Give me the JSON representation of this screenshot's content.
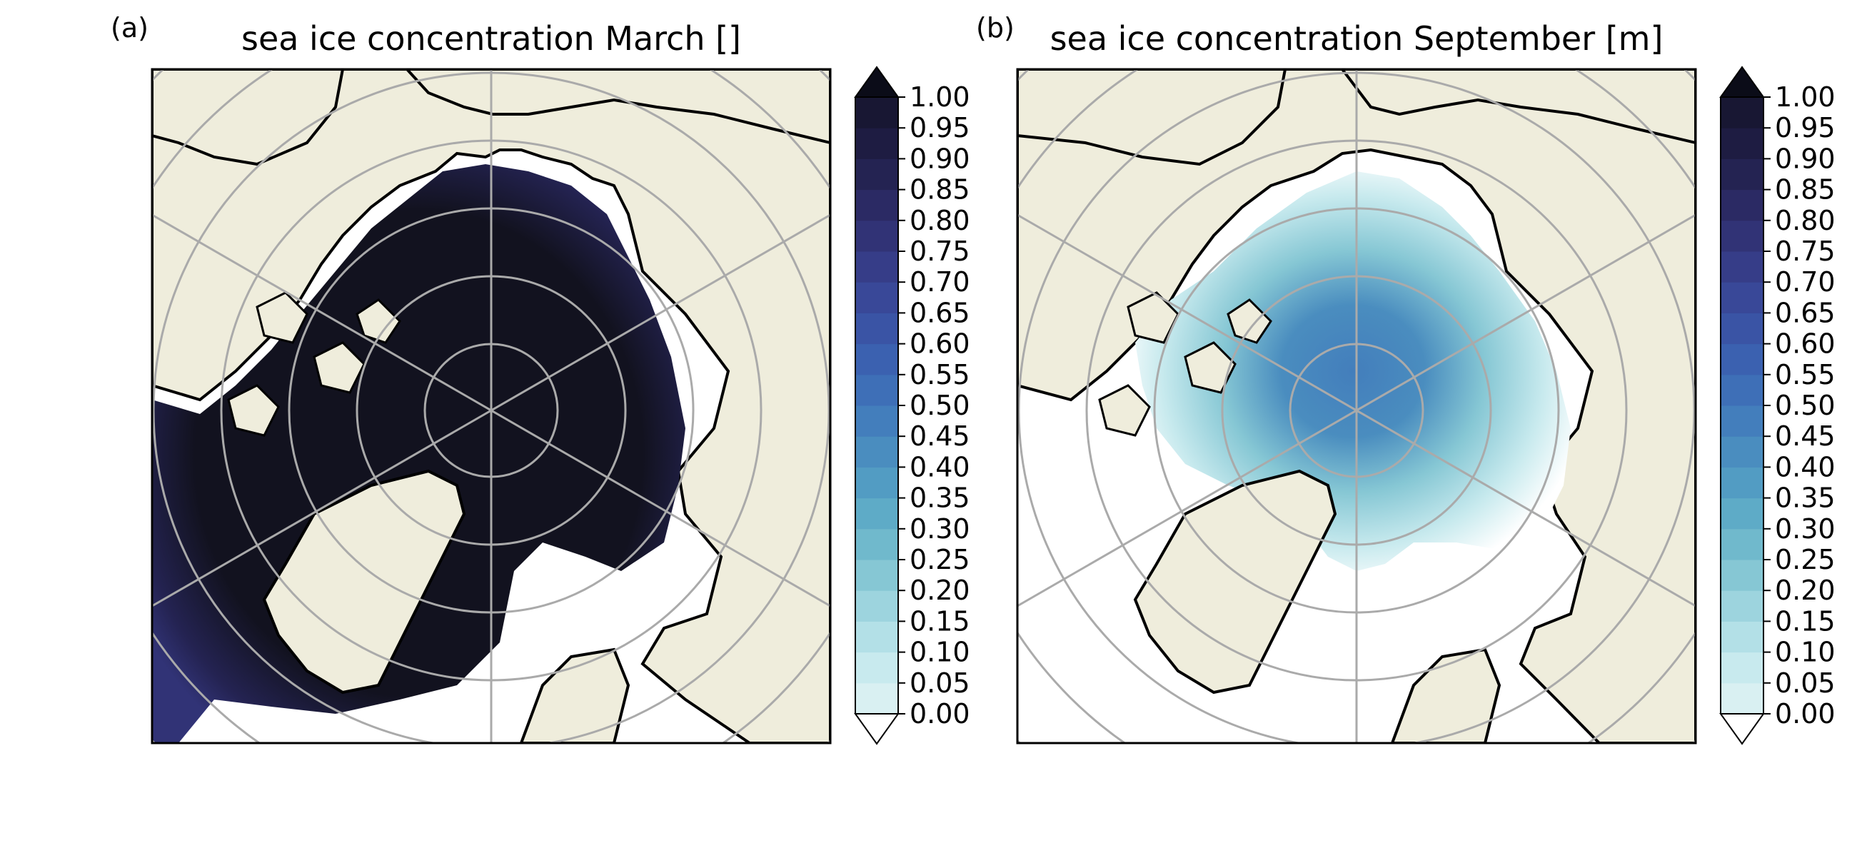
{
  "figure": {
    "panels": [
      {
        "label": "(a)",
        "title": "sea ice concentration March []",
        "month": "March"
      },
      {
        "label": "(b)",
        "title": "sea ice concentration September [m]",
        "month": "September"
      }
    ]
  },
  "colorbar": {
    "ticks": [
      "1.00",
      "0.95",
      "0.90",
      "0.85",
      "0.80",
      "0.75",
      "0.70",
      "0.65",
      "0.60",
      "0.55",
      "0.50",
      "0.45",
      "0.40",
      "0.35",
      "0.30",
      "0.25",
      "0.20",
      "0.15",
      "0.10",
      "0.05",
      "0.00"
    ],
    "levels": [
      0.0,
      0.05,
      0.1,
      0.15,
      0.2,
      0.25,
      0.3,
      0.35,
      0.4,
      0.45,
      0.5,
      0.55,
      0.6,
      0.65,
      0.7,
      0.75,
      0.8,
      0.85,
      0.9,
      0.95,
      1.0
    ],
    "extend": "both",
    "colors": [
      "#d9f0f2",
      "#c8eaee",
      "#b3e0e7",
      "#9dd4de",
      "#86c7d4",
      "#70b9cc",
      "#5eabc7",
      "#529cc3",
      "#4a8dbf",
      "#437ebc",
      "#3e6fb7",
      "#3b61b0",
      "#3a54a5",
      "#394898",
      "#363d88",
      "#313376",
      "#2b2a64",
      "#242352",
      "#1e1c42",
      "#181733",
      "#12121f"
    ],
    "under_color": "#ffffff",
    "over_color": "#0b0c18"
  },
  "map_style": {
    "land_color": "#efeddc",
    "ocean_color": "#ffffff",
    "coastline_color": "#000000",
    "gridline_color": "#aaaaaa",
    "projection": "north polar stereographic"
  }
}
